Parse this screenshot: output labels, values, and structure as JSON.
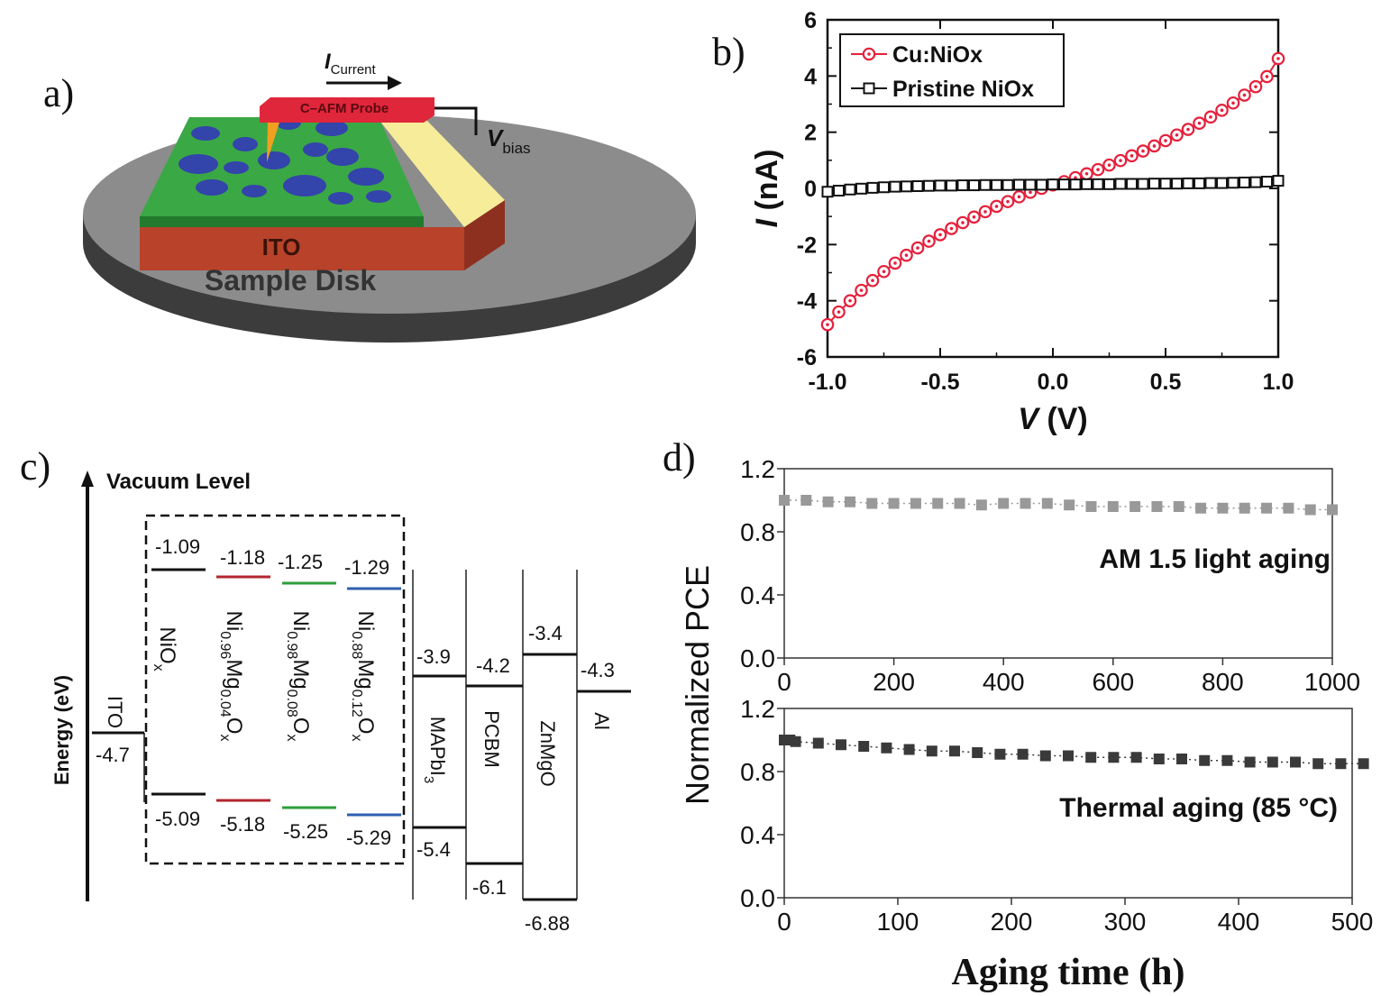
{
  "panels": {
    "a": {
      "label": "a)",
      "probe": "C–AFM Probe",
      "current_main": "I",
      "current_sub": "Current",
      "vbias_main": "V",
      "vbias_sub": "bias",
      "ito": "ITO",
      "disk": "Sample Disk",
      "colors": {
        "film": "#3aa845",
        "grains": "#3344aa",
        "ito": "#b8432a",
        "disk": "#8c8c8c",
        "probe": "#e0263b",
        "gold": "#f6ec9a"
      }
    },
    "b": {
      "label": "b)"
    },
    "c": {
      "label": "c)",
      "vacuum": "Vacuum Level",
      "energy_axis": "Energy (eV)",
      "ito": {
        "name": "ITO",
        "value": "-4.7"
      },
      "htl": [
        {
          "name_parts": [
            "Ni",
            "O",
            "x"
          ],
          "top": "-1.09",
          "bottom": "-5.09",
          "color": "#111111"
        },
        {
          "name_parts": [
            "Ni",
            "0.96",
            "Mg",
            "0.04",
            "O",
            "x"
          ],
          "top": "-1.18",
          "bottom": "-5.18",
          "color": "#b3262e"
        },
        {
          "name_parts": [
            "Ni",
            "0.98",
            "Mg",
            "0.08",
            "O",
            "x"
          ],
          "top": "-1.25",
          "bottom": "-5.25",
          "color": "#2e9e3a"
        },
        {
          "name_parts": [
            "Ni",
            "0.88",
            "Mg",
            "0.12",
            "O",
            "x"
          ],
          "top": "-1.29",
          "bottom": "-5.29",
          "color": "#2d5fae"
        }
      ],
      "layers": [
        {
          "name": "MAPbI",
          "sub": "3",
          "top": "-3.9",
          "bottom": "-5.4"
        },
        {
          "name": "PCBM",
          "sub": "",
          "top": "-4.2",
          "bottom": "-6.1"
        },
        {
          "name": "ZnMgO",
          "sub": "",
          "top": "-3.4",
          "bottom": "-6.88"
        }
      ],
      "al": {
        "name": "Al",
        "value": "-4.3"
      }
    },
    "d": {
      "label": "d)"
    }
  },
  "chart_data": [
    {
      "id": "b",
      "type": "line",
      "xlabel": "V (V)",
      "ylabel": "I (nA)",
      "xlim": [
        -1.0,
        1.0
      ],
      "ylim": [
        -6,
        6
      ],
      "xticks": [
        "-1.0",
        "-0.5",
        "0.0",
        "0.5",
        "1.0"
      ],
      "yticks": [
        "-6",
        "-4",
        "-2",
        "0",
        "2",
        "4",
        "6"
      ],
      "legend_position": "top-left",
      "series": [
        {
          "name": "Cu:NiOx",
          "color": "#e5213c",
          "marker": "circle",
          "x": [
            -1.0,
            -0.95,
            -0.9,
            -0.85,
            -0.8,
            -0.75,
            -0.7,
            -0.65,
            -0.6,
            -0.55,
            -0.5,
            -0.45,
            -0.4,
            -0.35,
            -0.3,
            -0.25,
            -0.2,
            -0.15,
            -0.1,
            -0.05,
            0.0,
            0.05,
            0.1,
            0.15,
            0.2,
            0.25,
            0.3,
            0.35,
            0.4,
            0.45,
            0.5,
            0.55,
            0.6,
            0.65,
            0.7,
            0.75,
            0.8,
            0.85,
            0.9,
            0.95,
            1.0
          ],
          "y": [
            -4.85,
            -4.4,
            -4.0,
            -3.63,
            -3.28,
            -2.96,
            -2.66,
            -2.38,
            -2.12,
            -1.88,
            -1.65,
            -1.43,
            -1.22,
            -1.02,
            -0.83,
            -0.64,
            -0.47,
            -0.3,
            -0.14,
            0.0,
            0.12,
            0.24,
            0.38,
            0.52,
            0.67,
            0.83,
            0.99,
            1.16,
            1.33,
            1.51,
            1.7,
            1.9,
            2.1,
            2.32,
            2.54,
            2.78,
            3.04,
            3.32,
            3.62,
            3.98,
            4.62
          ]
        },
        {
          "name": "Pristine NiOx",
          "color": "#111111",
          "marker": "square",
          "x": [
            -1.0,
            -0.95,
            -0.9,
            -0.85,
            -0.8,
            -0.75,
            -0.7,
            -0.65,
            -0.6,
            -0.55,
            -0.5,
            -0.45,
            -0.4,
            -0.35,
            -0.3,
            -0.25,
            -0.2,
            -0.15,
            -0.1,
            -0.05,
            0.0,
            0.05,
            0.1,
            0.15,
            0.2,
            0.25,
            0.3,
            0.35,
            0.4,
            0.45,
            0.5,
            0.55,
            0.6,
            0.65,
            0.7,
            0.75,
            0.8,
            0.85,
            0.9,
            0.95,
            1.0
          ],
          "y": [
            -0.12,
            -0.08,
            -0.04,
            -0.01,
            0.02,
            0.04,
            0.06,
            0.07,
            0.08,
            0.09,
            0.1,
            0.1,
            0.11,
            0.11,
            0.12,
            0.12,
            0.12,
            0.13,
            0.13,
            0.13,
            0.14,
            0.14,
            0.14,
            0.15,
            0.15,
            0.15,
            0.16,
            0.16,
            0.16,
            0.17,
            0.17,
            0.17,
            0.18,
            0.18,
            0.19,
            0.19,
            0.2,
            0.21,
            0.22,
            0.24,
            0.27
          ]
        }
      ]
    },
    {
      "id": "d-top",
      "type": "scatter",
      "ylabel": "Normalized PCE",
      "xlim": [
        0,
        1000
      ],
      "ylim": [
        0.0,
        1.2
      ],
      "xticks": [
        "0",
        "200",
        "400",
        "600",
        "800",
        "1000"
      ],
      "yticks": [
        "0.0",
        "0.4",
        "0.8",
        "1.2"
      ],
      "annotation": "AM 1.5 light aging",
      "series": [
        {
          "color": "#999999",
          "marker": "square",
          "line": "dotted",
          "x": [
            0,
            40,
            80,
            120,
            160,
            200,
            240,
            280,
            320,
            360,
            400,
            440,
            480,
            520,
            560,
            600,
            640,
            680,
            720,
            760,
            800,
            840,
            880,
            920,
            960,
            1000
          ],
          "y": [
            1.0,
            1.0,
            0.99,
            0.99,
            0.98,
            0.98,
            0.98,
            0.98,
            0.98,
            0.97,
            0.98,
            0.98,
            0.98,
            0.97,
            0.96,
            0.96,
            0.96,
            0.96,
            0.96,
            0.95,
            0.95,
            0.95,
            0.95,
            0.95,
            0.94,
            0.94
          ]
        }
      ]
    },
    {
      "id": "d-bottom",
      "type": "scatter",
      "xlabel": "Aging time (h)",
      "xlim": [
        0,
        500
      ],
      "ylim": [
        0.0,
        1.2
      ],
      "xticks": [
        "0",
        "100",
        "200",
        "300",
        "400",
        "500"
      ],
      "yticks": [
        "0.0",
        "0.4",
        "0.8",
        "1.2"
      ],
      "annotation": "Thermal aging (85 °C)",
      "series": [
        {
          "color": "#3a3a3a",
          "marker": "square",
          "line": "dotted",
          "x": [
            0,
            5,
            10,
            30,
            50,
            70,
            90,
            110,
            130,
            150,
            170,
            190,
            210,
            230,
            250,
            270,
            290,
            310,
            330,
            350,
            370,
            390,
            410,
            430,
            450,
            470,
            490,
            510
          ],
          "y": [
            1.0,
            1.0,
            0.99,
            0.98,
            0.97,
            0.96,
            0.95,
            0.94,
            0.93,
            0.93,
            0.92,
            0.91,
            0.91,
            0.9,
            0.9,
            0.89,
            0.89,
            0.89,
            0.88,
            0.88,
            0.87,
            0.87,
            0.86,
            0.86,
            0.86,
            0.85,
            0.85,
            0.85
          ]
        }
      ]
    }
  ]
}
